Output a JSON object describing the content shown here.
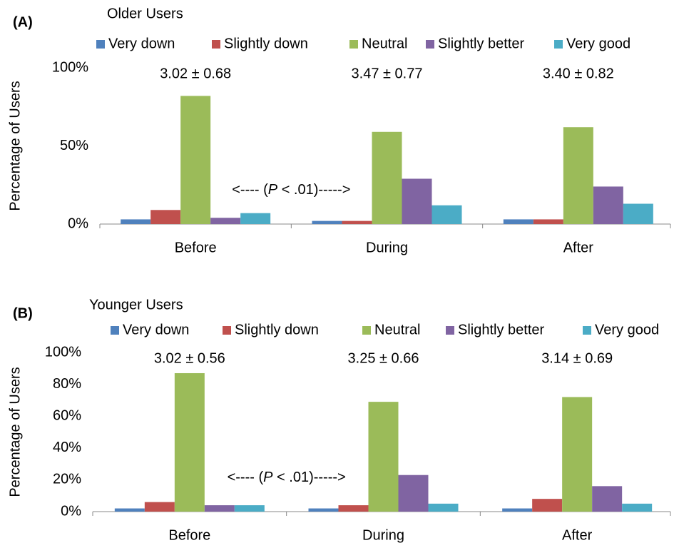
{
  "chart_data": [
    {
      "type": "bar",
      "panel": "(A)",
      "title": "Older Users",
      "ylabel": "Percentage of Users",
      "categories": [
        "Before",
        "During",
        "After"
      ],
      "series": [
        {
          "name": "Very down",
          "color": "#4f81bd",
          "values": [
            3,
            2,
            3
          ]
        },
        {
          "name": "Slightly down",
          "color": "#c0504d",
          "values": [
            9,
            2,
            3
          ]
        },
        {
          "name": "Neutral",
          "color": "#9bbb59",
          "values": [
            82,
            59,
            62
          ]
        },
        {
          "name": "Slightly better",
          "color": "#8064a2",
          "values": [
            4,
            29,
            24
          ]
        },
        {
          "name": "Very good",
          "color": "#4bacc6",
          "values": [
            7,
            12,
            13
          ]
        }
      ],
      "annotations": [
        "3.02 ± 0.68",
        "3.47 ± 0.77",
        "3.40 ± 0.82"
      ],
      "significance": [
        "<---- (",
        "P",
        " < .01)----->"
      ],
      "ylim": [
        0,
        100
      ],
      "yticks": [
        {
          "value": 0,
          "label": "0%"
        },
        {
          "value": 50,
          "label": "50%"
        },
        {
          "value": 100,
          "label": "100%"
        }
      ],
      "legend": "top"
    },
    {
      "type": "bar",
      "panel": "(B)",
      "title": "Younger Users",
      "ylabel": "Percentage of Users",
      "categories": [
        "Before",
        "During",
        "After"
      ],
      "series": [
        {
          "name": "Very down",
          "color": "#4f81bd",
          "values": [
            2,
            2,
            2
          ]
        },
        {
          "name": "Slightly down",
          "color": "#c0504d",
          "values": [
            6,
            4,
            8
          ]
        },
        {
          "name": "Neutral",
          "color": "#9bbb59",
          "values": [
            87,
            69,
            72
          ]
        },
        {
          "name": "Slightly better",
          "color": "#8064a2",
          "values": [
            4,
            23,
            16
          ]
        },
        {
          "name": "Very good",
          "color": "#4bacc6",
          "values": [
            4,
            5,
            5
          ]
        }
      ],
      "annotations": [
        "3.02 ± 0.56",
        "3.25 ± 0.66",
        "3.14 ± 0.69"
      ],
      "significance": [
        "<---- (",
        "P",
        " < .01)----->"
      ],
      "ylim": [
        0,
        100
      ],
      "yticks": [
        {
          "value": 0,
          "label": "0%"
        },
        {
          "value": 20,
          "label": "20%"
        },
        {
          "value": 40,
          "label": "40%"
        },
        {
          "value": 60,
          "label": "60%"
        },
        {
          "value": 80,
          "label": "80%"
        },
        {
          "value": 100,
          "label": "100%"
        }
      ],
      "legend": "top"
    }
  ]
}
